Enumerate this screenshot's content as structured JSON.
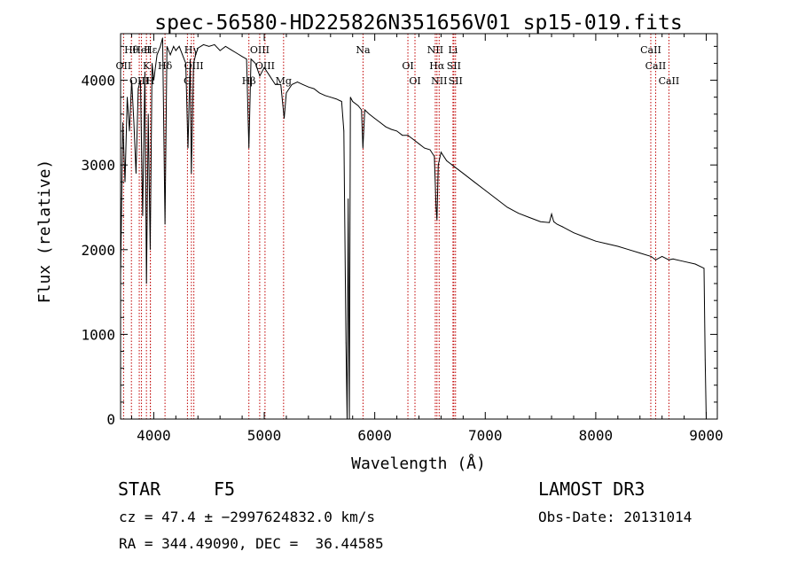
{
  "chart_data": {
    "type": "line",
    "title": "spec-56580-HD225826N351656V01_sp15-019.fits",
    "xlabel": "Wavelength (Å)",
    "ylabel": "Flux (relative)",
    "xlim": [
      3700,
      9100
    ],
    "ylim": [
      0,
      4550
    ],
    "xticks": [
      4000,
      5000,
      6000,
      7000,
      8000,
      9000
    ],
    "yticks": [
      0,
      1000,
      2000,
      3000,
      4000
    ],
    "grid": false,
    "series": [
      {
        "name": "spectrum",
        "x": [
          3700,
          3720,
          3740,
          3760,
          3780,
          3800,
          3820,
          3840,
          3860,
          3880,
          3900,
          3920,
          3934,
          3950,
          3968,
          3985,
          4000,
          4030,
          4060,
          4080,
          4102,
          4120,
          4150,
          4180,
          4200,
          4230,
          4260,
          4290,
          4310,
          4330,
          4340,
          4360,
          4380,
          4400,
          4450,
          4500,
          4550,
          4600,
          4650,
          4700,
          4750,
          4800,
          4840,
          4861,
          4880,
          4920,
          4960,
          5000,
          5050,
          5100,
          5150,
          5180,
          5200,
          5250,
          5300,
          5350,
          5400,
          5450,
          5500,
          5550,
          5600,
          5650,
          5700,
          5720,
          5740,
          5750,
          5760,
          5770,
          5780,
          5800,
          5850,
          5880,
          5893,
          5910,
          5950,
          6000,
          6050,
          6100,
          6150,
          6200,
          6250,
          6300,
          6350,
          6400,
          6450,
          6500,
          6540,
          6555,
          6563,
          6575,
          6600,
          6650,
          6700,
          6800,
          6900,
          7000,
          7100,
          7200,
          7300,
          7400,
          7500,
          7580,
          7600,
          7620,
          7650,
          7700,
          7800,
          7900,
          8000,
          8100,
          8200,
          8300,
          8400,
          8500,
          8542,
          8600,
          8662,
          8700,
          8800,
          8900,
          8980,
          8990,
          9000
        ],
        "y": [
          1700,
          3500,
          2800,
          3800,
          3400,
          4000,
          3500,
          2900,
          3900,
          4000,
          2400,
          4100,
          1600,
          3600,
          2000,
          4200,
          4000,
          4300,
          4400,
          4500,
          2300,
          4400,
          4300,
          4400,
          4350,
          4400,
          4300,
          4200,
          3200,
          4250,
          2900,
          4200,
          4300,
          4380,
          4420,
          4400,
          4420,
          4350,
          4400,
          4360,
          4320,
          4280,
          4250,
          3200,
          4250,
          4200,
          4050,
          4150,
          4050,
          3950,
          3950,
          3550,
          3850,
          3950,
          3980,
          3950,
          3920,
          3900,
          3850,
          3820,
          3800,
          3780,
          3750,
          3400,
          900,
          0,
          2600,
          0,
          3800,
          3750,
          3700,
          3650,
          3200,
          3650,
          3600,
          3550,
          3500,
          3450,
          3420,
          3400,
          3350,
          3350,
          3300,
          3250,
          3200,
          3180,
          3100,
          2500,
          2350,
          3000,
          3150,
          3050,
          3000,
          2900,
          2800,
          2700,
          2600,
          2500,
          2430,
          2380,
          2330,
          2320,
          2420,
          2330,
          2300,
          2270,
          2200,
          2150,
          2100,
          2070,
          2040,
          2000,
          1960,
          1920,
          1880,
          1920,
          1880,
          1890,
          1860,
          1830,
          1780,
          700,
          0
        ]
      }
    ],
    "lines": [
      {
        "name": "Hθ",
        "x": 3798
      },
      {
        "name": "OII",
        "x": 3727
      },
      {
        "name": "OIII",
        "x": 3869
      },
      {
        "name": "HeI",
        "x": 3889
      },
      {
        "name": "K",
        "x": 3934
      },
      {
        "name": "H",
        "x": 3969
      },
      {
        "name": "Hε",
        "x": 3970
      },
      {
        "name": "Hδ",
        "x": 4102
      },
      {
        "name": "G",
        "x": 4305
      },
      {
        "name": "Hγ",
        "x": 4341
      },
      {
        "name": "OIII",
        "x": 4363
      },
      {
        "name": "Hβ",
        "x": 4861
      },
      {
        "name": "OIII",
        "x": 4959
      },
      {
        "name": "OIII",
        "x": 5007
      },
      {
        "name": "Mg",
        "x": 5175
      },
      {
        "name": "Na",
        "x": 5894
      },
      {
        "name": "OI",
        "x": 6300
      },
      {
        "name": "OI",
        "x": 6364
      },
      {
        "name": "NII",
        "x": 6548
      },
      {
        "name": "Hα",
        "x": 6563
      },
      {
        "name": "NII",
        "x": 6583
      },
      {
        "name": "Li",
        "x": 6708
      },
      {
        "name": "SII",
        "x": 6716
      },
      {
        "name": "SII",
        "x": 6731
      },
      {
        "name": "CaII",
        "x": 8498
      },
      {
        "name": "CaII",
        "x": 8542
      },
      {
        "name": "CaII",
        "x": 8662
      }
    ],
    "line_color": "#c00000"
  },
  "footer": {
    "object_class": "STAR",
    "subclass": "F5",
    "survey": "LAMOST DR3",
    "redshift": "cz = 47.4 ± −2997624832.0 km/s",
    "obs_date": "Obs-Date: 20131014",
    "coords": "RA = 344.49090, DEC =  36.44585"
  }
}
